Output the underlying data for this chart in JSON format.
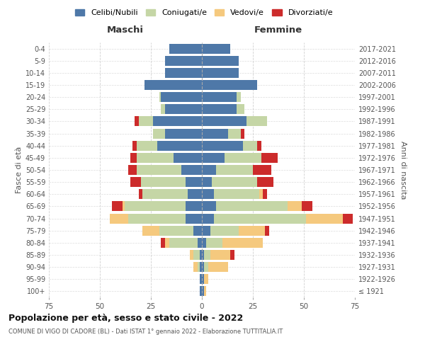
{
  "age_groups": [
    "100+",
    "95-99",
    "90-94",
    "85-89",
    "80-84",
    "75-79",
    "70-74",
    "65-69",
    "60-64",
    "55-59",
    "50-54",
    "45-49",
    "40-44",
    "35-39",
    "30-34",
    "25-29",
    "20-24",
    "15-19",
    "10-14",
    "5-9",
    "0-4"
  ],
  "birth_years": [
    "≤ 1921",
    "1922-1926",
    "1927-1931",
    "1932-1936",
    "1937-1941",
    "1942-1946",
    "1947-1951",
    "1952-1956",
    "1957-1961",
    "1962-1966",
    "1967-1971",
    "1972-1976",
    "1977-1981",
    "1982-1986",
    "1987-1991",
    "1992-1996",
    "1997-2001",
    "2002-2006",
    "2007-2011",
    "2012-2016",
    "2017-2021"
  ],
  "colors": {
    "celibi": "#4e78a8",
    "coniugati": "#c5d6a6",
    "vedovi": "#f5c97e",
    "divorziati": "#cc2b2b"
  },
  "maschi": {
    "celibi": [
      1,
      1,
      1,
      1,
      2,
      4,
      8,
      8,
      7,
      8,
      10,
      14,
      22,
      18,
      24,
      18,
      20,
      28,
      18,
      18,
      16
    ],
    "coniugati": [
      0,
      0,
      1,
      3,
      14,
      17,
      28,
      30,
      22,
      22,
      22,
      18,
      10,
      6,
      7,
      2,
      1,
      0,
      0,
      0,
      0
    ],
    "vedovi": [
      0,
      0,
      2,
      2,
      2,
      8,
      9,
      1,
      0,
      0,
      0,
      0,
      0,
      0,
      0,
      0,
      0,
      0,
      0,
      0,
      0
    ],
    "divorziati": [
      0,
      0,
      0,
      0,
      2,
      0,
      0,
      5,
      2,
      5,
      4,
      3,
      2,
      0,
      2,
      0,
      0,
      0,
      0,
      0,
      0
    ]
  },
  "femmine": {
    "celibi": [
      1,
      1,
      1,
      1,
      2,
      4,
      6,
      7,
      6,
      5,
      7,
      11,
      20,
      13,
      22,
      17,
      17,
      27,
      18,
      18,
      14
    ],
    "coniugati": [
      0,
      0,
      2,
      3,
      8,
      14,
      45,
      35,
      22,
      22,
      18,
      18,
      7,
      6,
      10,
      4,
      2,
      0,
      0,
      0,
      0
    ],
    "vedovi": [
      1,
      2,
      10,
      10,
      20,
      13,
      18,
      7,
      2,
      0,
      0,
      0,
      0,
      0,
      0,
      0,
      0,
      0,
      0,
      0,
      0
    ],
    "divorziati": [
      0,
      0,
      0,
      2,
      0,
      2,
      5,
      5,
      2,
      8,
      9,
      8,
      2,
      2,
      0,
      0,
      0,
      0,
      0,
      0,
      0
    ]
  },
  "title": "Popolazione per età, sesso e stato civile - 2022",
  "subtitle": "COMUNE DI VIGO DI CADORE (BL) - Dati ISTAT 1° gennaio 2022 - Elaborazione TUTTITALIA.IT",
  "xlabel_left": "Maschi",
  "xlabel_right": "Femmine",
  "ylabel_left": "Fasce di età",
  "ylabel_right": "Anni di nascita",
  "xlim": 75,
  "legend_labels": [
    "Celibi/Nubili",
    "Coniugati/e",
    "Vedovi/e",
    "Divorziati/e"
  ],
  "bg_color": "#ffffff",
  "grid_color": "#cccccc"
}
